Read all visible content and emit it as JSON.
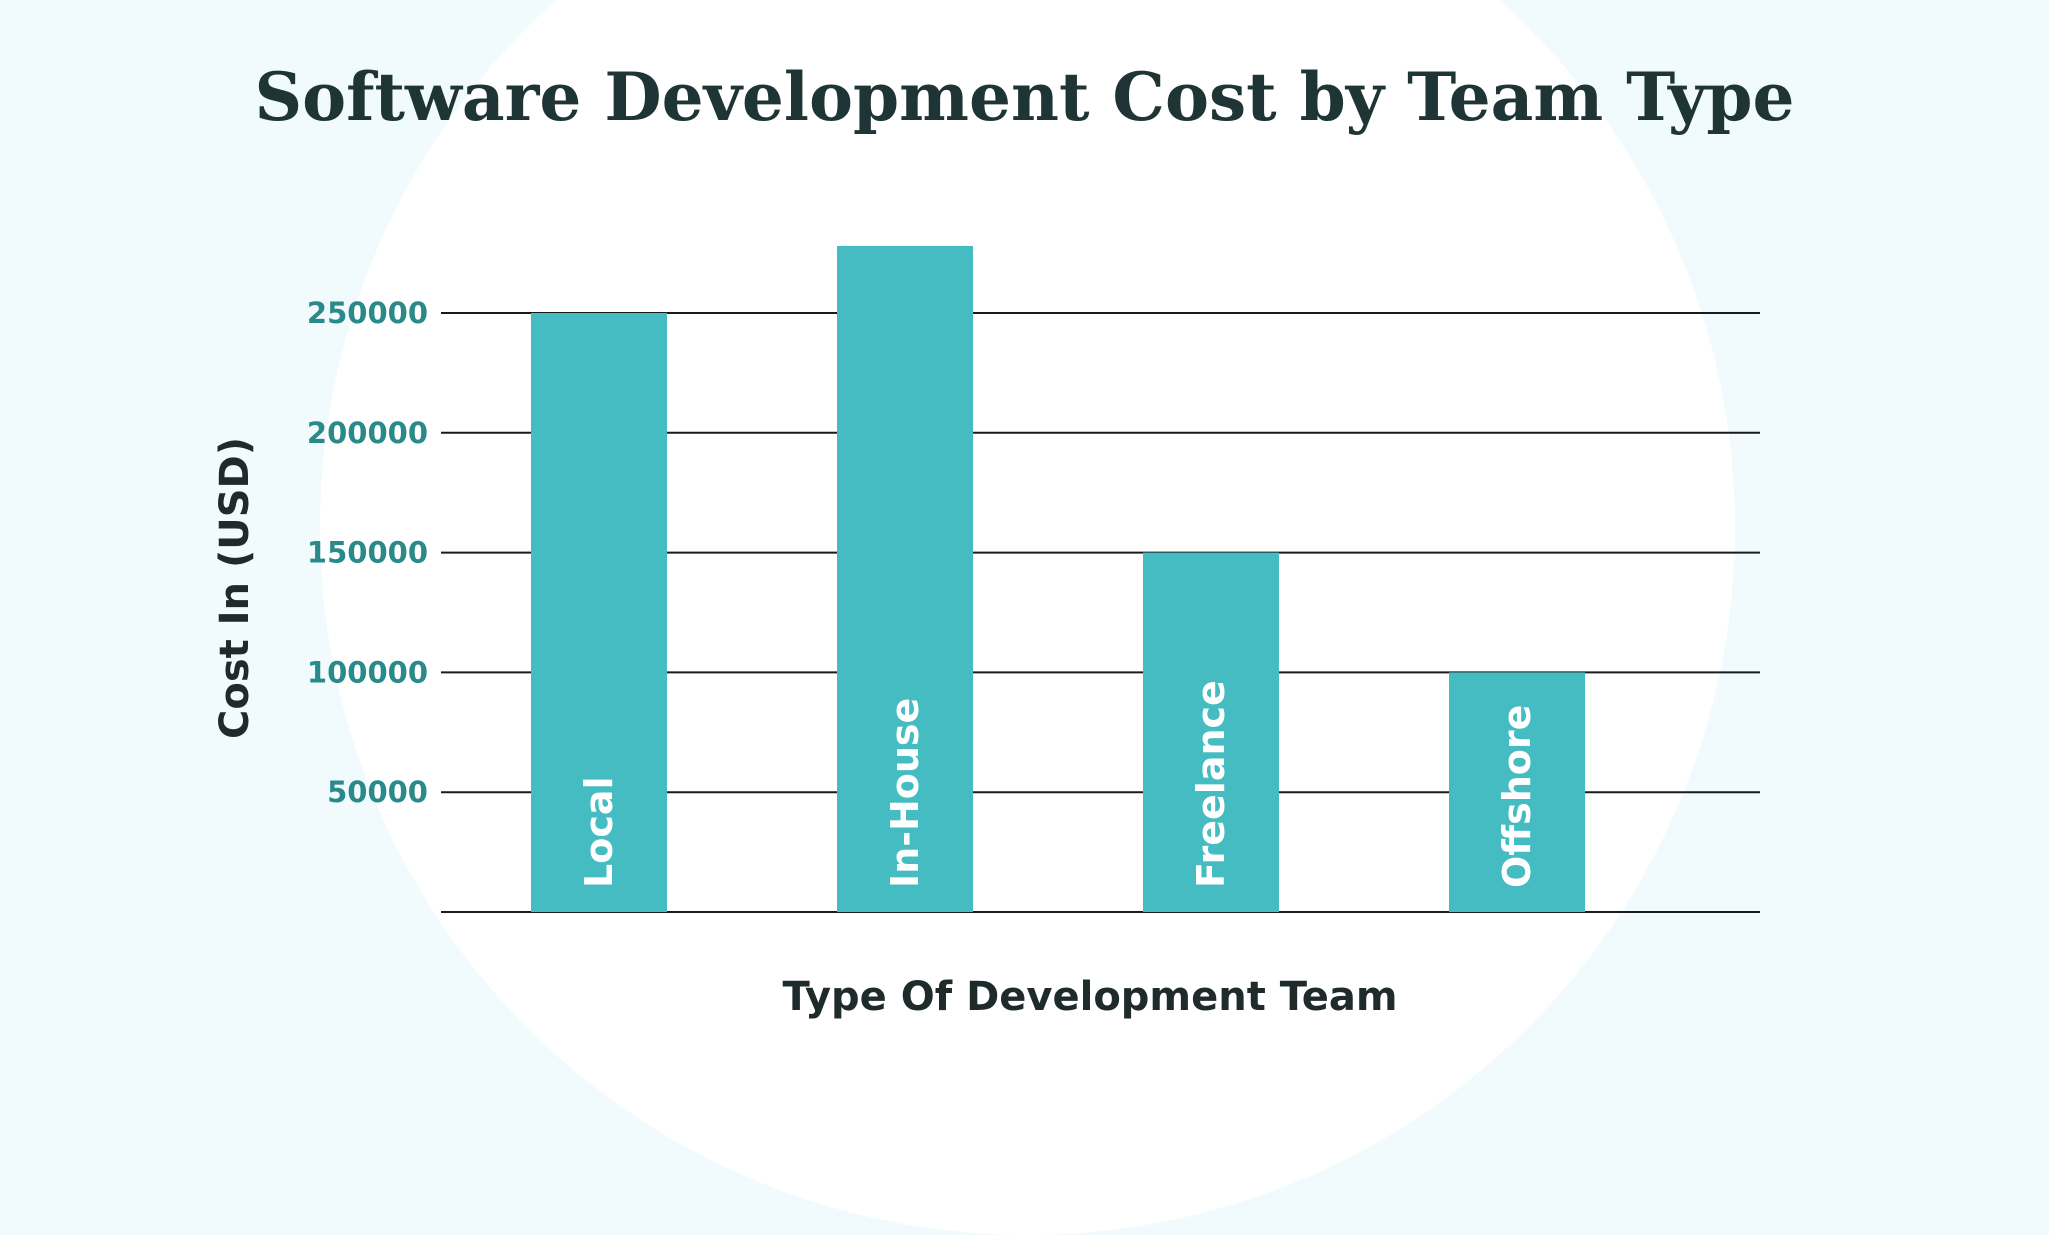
{
  "chart_data": {
    "type": "bar",
    "title": "Software Development Cost by Team Type",
    "xlabel": "Type Of Development Team",
    "ylabel": "Cost In (USD)",
    "categories": [
      "Local",
      "In-House",
      "Freelance",
      "Offshore"
    ],
    "values": [
      250000,
      278000,
      150000,
      100000
    ],
    "yticks": [
      50000,
      100000,
      150000,
      200000,
      250000
    ],
    "ylim": [
      0,
      278000
    ],
    "grid": true,
    "bar_color": "#44bcc2",
    "tick_color": "#2a8a8a",
    "title_color": "#1f3434"
  }
}
